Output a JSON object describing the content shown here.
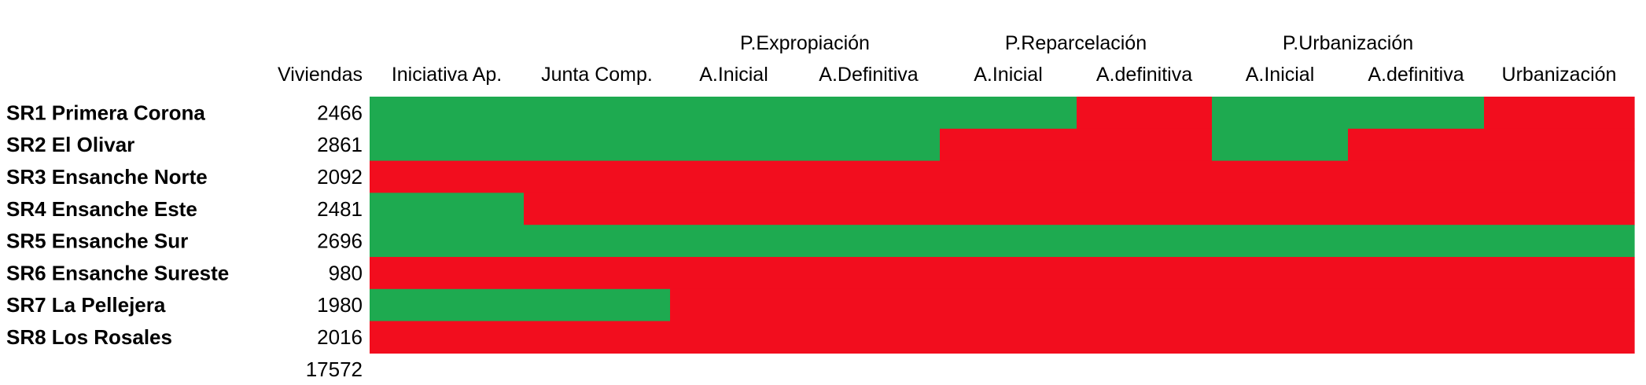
{
  "chart_data": {
    "type": "table",
    "group_headers": [
      {
        "label": "P.Expropiación",
        "from": 2,
        "to": 3
      },
      {
        "label": "P.Reparcelación",
        "from": 4,
        "to": 5
      },
      {
        "label": "P.Urbanización",
        "from": 6,
        "to": 7
      }
    ],
    "value_column_header": "Viviendas",
    "stage_headers": [
      "Iniciativa Ap.",
      "Junta Comp.",
      "A.Inicial",
      "A.Definitiva",
      "A.Inicial",
      "A.definitiva",
      "A.Inicial",
      "A.definitiva",
      "Urbanización"
    ],
    "rows": [
      {
        "name": "SR1 Primera Corona",
        "viviendas": "2466",
        "status": [
          1,
          1,
          1,
          1,
          1,
          0,
          1,
          1,
          0
        ]
      },
      {
        "name": "SR2 El Olivar",
        "viviendas": "2861",
        "status": [
          1,
          1,
          1,
          1,
          0,
          0,
          1,
          0,
          0
        ]
      },
      {
        "name": "SR3 Ensanche Norte",
        "viviendas": "2092",
        "status": [
          0,
          0,
          0,
          0,
          0,
          0,
          0,
          0,
          0
        ]
      },
      {
        "name": "SR4 Ensanche Este",
        "viviendas": "2481",
        "status": [
          1,
          0,
          0,
          0,
          0,
          0,
          0,
          0,
          0
        ]
      },
      {
        "name": "SR5 Ensanche Sur",
        "viviendas": "2696",
        "status": [
          1,
          1,
          1,
          1,
          1,
          1,
          1,
          1,
          1
        ]
      },
      {
        "name": "SR6 Ensanche Sureste",
        "viviendas": "980",
        "status": [
          0,
          0,
          0,
          0,
          0,
          0,
          0,
          0,
          0
        ]
      },
      {
        "name": "SR7 La Pellejera",
        "viviendas": "1980",
        "status": [
          1,
          1,
          0,
          0,
          0,
          0,
          0,
          0,
          0
        ]
      },
      {
        "name": "SR8 Los Rosales",
        "viviendas": "2016",
        "status": [
          0,
          0,
          0,
          0,
          0,
          0,
          0,
          0,
          0
        ]
      }
    ],
    "total": "17572",
    "colors": {
      "done": "#1eaa50",
      "pending": "#f20d1e"
    }
  }
}
